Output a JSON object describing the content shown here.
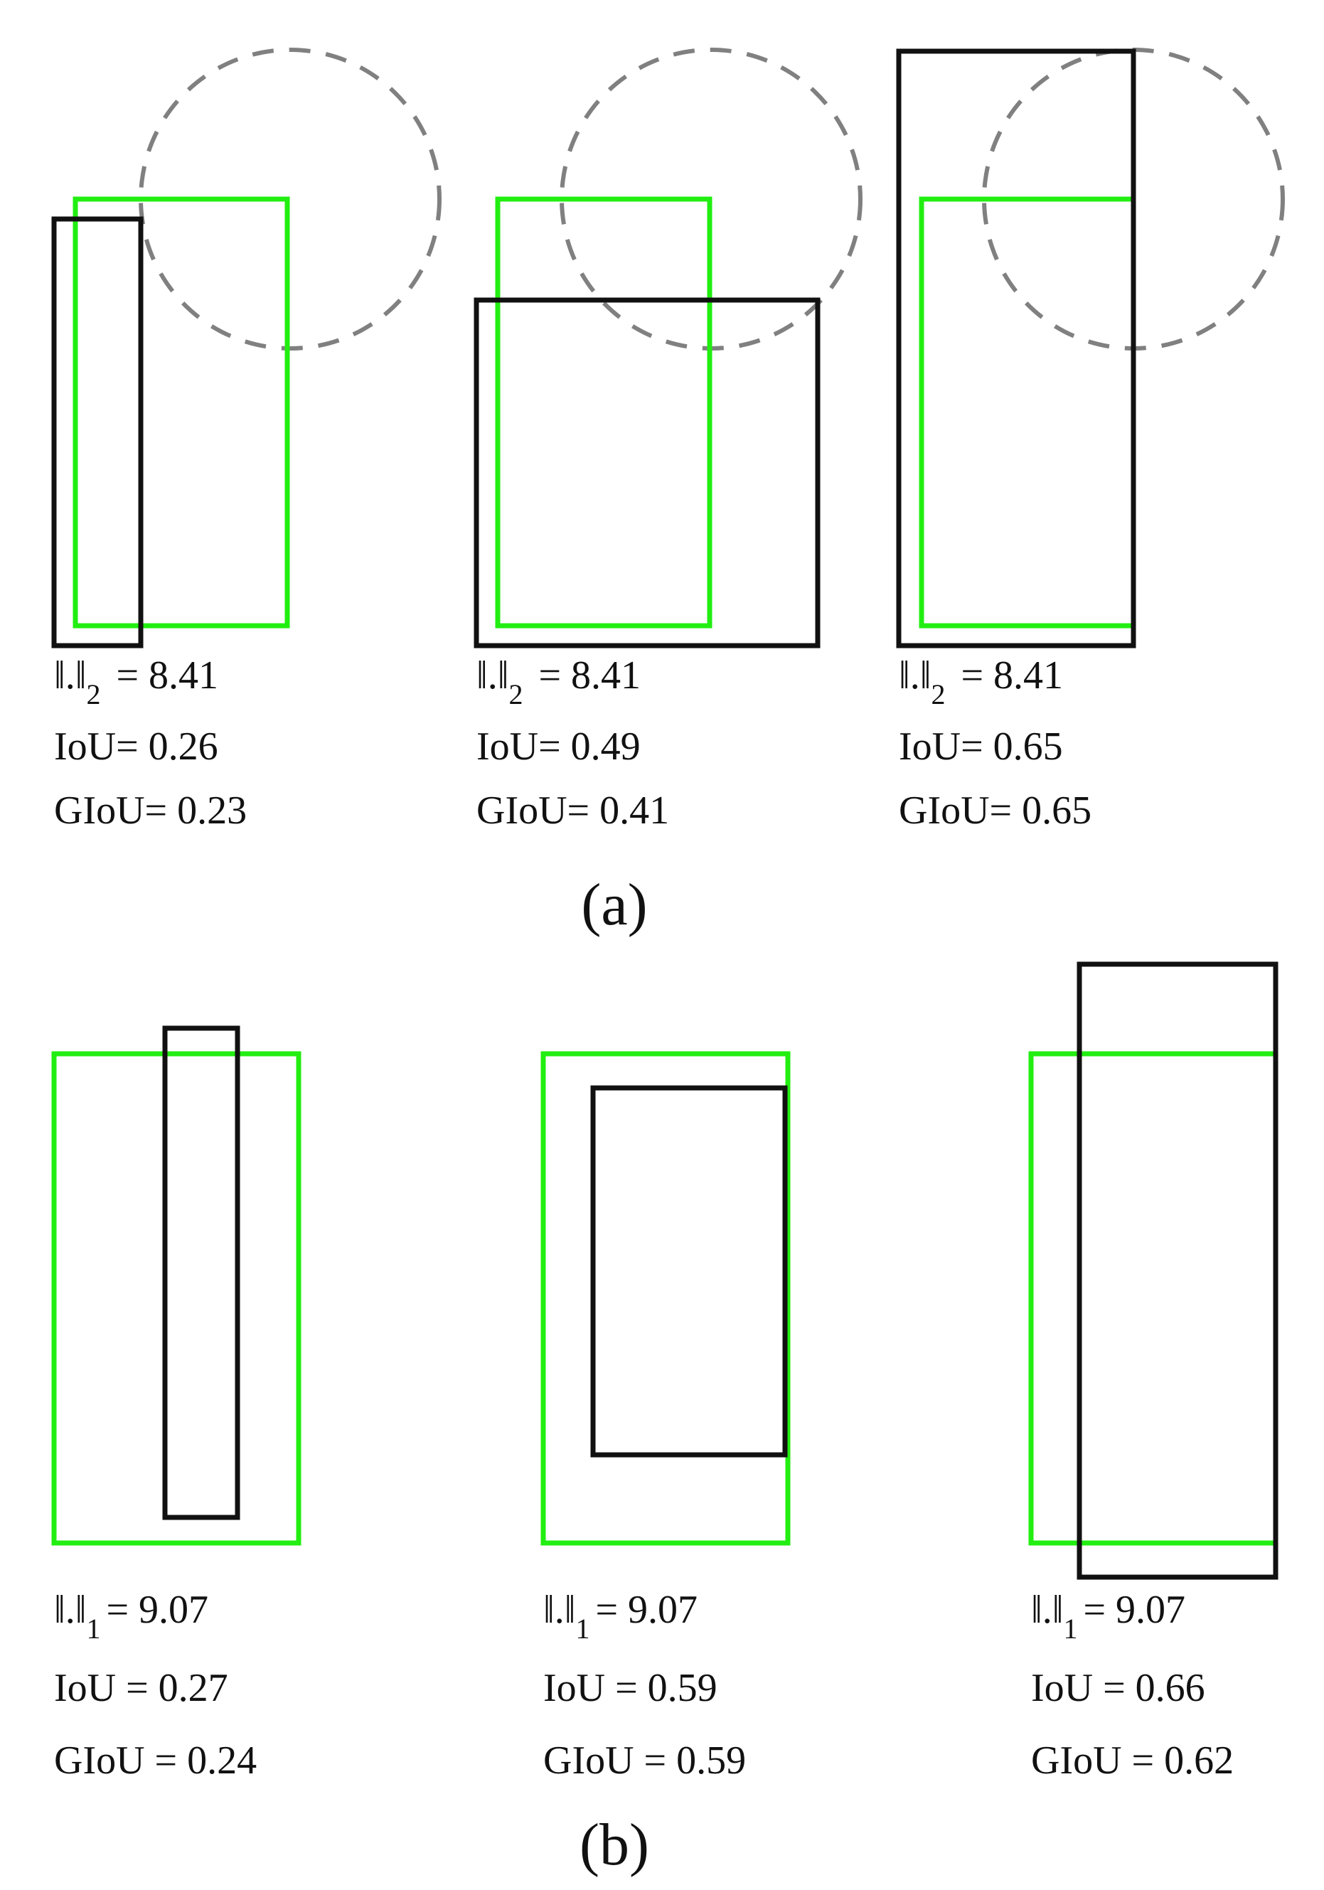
{
  "colors": {
    "ground_truth": "#22ee11",
    "prediction": "#111111",
    "dashed_circle": "#808080"
  },
  "panel_a": {
    "caption": "(a)",
    "norm_symbol": "‖.‖",
    "norm_subscript": "2",
    "examples": [
      {
        "norm_value": "= 8.41",
        "iou": "IoU= 0.26",
        "giou": "GIoU= 0.23"
      },
      {
        "norm_value": "= 8.41",
        "iou": "IoU= 0.49",
        "giou": "GIoU= 0.41"
      },
      {
        "norm_value": "= 8.41",
        "iou": "IoU= 0.65",
        "giou": "GIoU= 0.65"
      }
    ]
  },
  "panel_b": {
    "caption": "(b)",
    "norm_symbol": "‖.‖",
    "norm_subscript": "1",
    "examples": [
      {
        "norm_value": "= 9.07",
        "iou": "IoU = 0.27",
        "giou": "GIoU = 0.24"
      },
      {
        "norm_value": "= 9.07",
        "iou": "IoU = 0.59",
        "giou": "GIoU = 0.59"
      },
      {
        "norm_value": "= 9.07",
        "iou": "IoU = 0.66",
        "giou": "GIoU = 0.62"
      }
    ]
  }
}
